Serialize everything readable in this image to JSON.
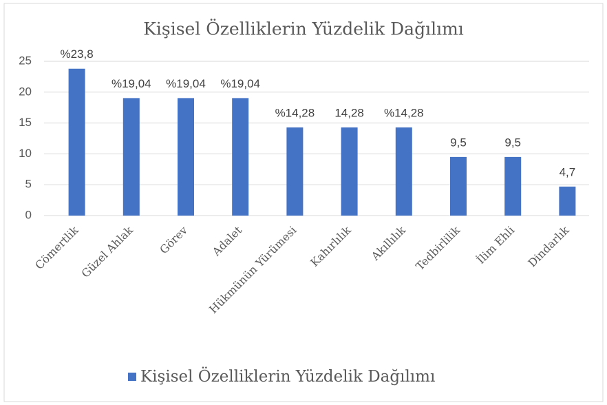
{
  "chart_data": {
    "type": "bar",
    "title": "Kişisel Özelliklerin Yüzdelik Dağılımı",
    "categories": [
      "Cömertlik",
      "Güzel Ahlak",
      "Görev",
      "Adalet",
      "Hükmünün Yürümesi",
      "Kahırlılık",
      "Akıllılık",
      "Tedbirlilik",
      "İlim Ehli",
      "Dindarlık"
    ],
    "series": [
      {
        "name": "Kişisel Özelliklerin Yüzdelik Dağılımı",
        "color": "#4472c4",
        "values": [
          23.8,
          19.04,
          19.04,
          19.04,
          14.28,
          14.28,
          14.28,
          9.5,
          9.5,
          4.7
        ],
        "value_labels": [
          "%23,8",
          "%19,04",
          "%19,04",
          "%19,04",
          "%14,28",
          "14,28",
          "%14,28",
          "9,5",
          "9,5",
          "4,7"
        ]
      }
    ],
    "ylim": [
      0,
      25
    ],
    "yticks": [
      0,
      5,
      10,
      15,
      20,
      25
    ],
    "grid": true,
    "legend": "bottom"
  }
}
